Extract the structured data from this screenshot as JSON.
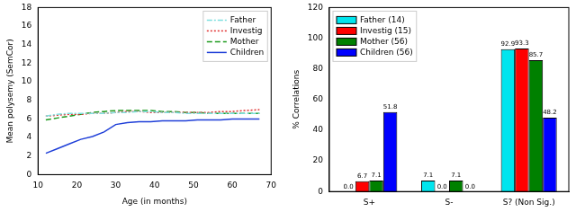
{
  "chart_data": [
    {
      "type": "line",
      "y_label": "Mean polysemy (SemCor)",
      "x_label": "Age (in months)",
      "xlim": [
        10,
        70
      ],
      "xticks": [
        10,
        20,
        30,
        40,
        50,
        60,
        70
      ],
      "ylim": [
        0,
        18
      ],
      "yticks": [
        0,
        2,
        4,
        6,
        8,
        10,
        12,
        14,
        16,
        18
      ],
      "grid": false,
      "legend": "upper right",
      "x": [
        12,
        15,
        18,
        21,
        24,
        27,
        30,
        33,
        36,
        39,
        42,
        45,
        48,
        51,
        54,
        57,
        60,
        63,
        67
      ],
      "series": [
        {
          "name": "Father",
          "color": "#7fdfdf",
          "line_style": "dashdot",
          "marker": "none",
          "values": [
            6.3,
            6.5,
            6.6,
            6.6,
            6.6,
            6.6,
            6.7,
            6.7,
            6.8,
            6.8,
            6.7,
            6.7,
            6.6,
            6.6,
            6.6,
            6.6,
            6.6,
            6.6,
            6.6
          ]
        },
        {
          "name": "Investig",
          "color": "#e03030",
          "line_style": "dotted",
          "marker": "none",
          "values": [
            6.3,
            6.4,
            6.5,
            6.5,
            6.6,
            6.6,
            6.7,
            6.8,
            6.8,
            6.7,
            6.7,
            6.7,
            6.7,
            6.7,
            6.7,
            6.8,
            6.8,
            6.9,
            7.0
          ]
        },
        {
          "name": "Mother",
          "color": "#1e9a1e",
          "line_style": "dashed",
          "marker": "none",
          "values": [
            5.9,
            6.1,
            6.3,
            6.5,
            6.7,
            6.8,
            6.9,
            6.9,
            6.9,
            6.9,
            6.8,
            6.8,
            6.7,
            6.7,
            6.6,
            6.6,
            6.6,
            6.6,
            6.6
          ]
        },
        {
          "name": "Children",
          "color": "#1f3fd8",
          "line_style": "solid",
          "marker": "none",
          "values": [
            2.3,
            2.8,
            3.3,
            3.8,
            4.1,
            4.6,
            5.4,
            5.6,
            5.7,
            5.7,
            5.8,
            5.8,
            5.8,
            5.9,
            5.9,
            5.9,
            6.0,
            6.0,
            6.0
          ]
        }
      ]
    },
    {
      "type": "bar",
      "y_label": "% Correlations",
      "categories": [
        "S+",
        "S-",
        "S? (Non Sig.)"
      ],
      "ylim": [
        0,
        120
      ],
      "yticks": [
        0,
        20,
        40,
        60,
        80,
        100,
        120
      ],
      "grid": false,
      "legend": "upper left",
      "data_labels": true,
      "series": [
        {
          "name": "Father (14)",
          "color": "#00e5ee",
          "values": [
            0.0,
            7.1,
            92.9
          ],
          "value_labels": [
            "0.0",
            "7.1",
            "92.9"
          ]
        },
        {
          "name": "Investig (15)",
          "color": "#ff0000",
          "values": [
            6.7,
            0.0,
            93.3
          ],
          "value_labels": [
            "6.7",
            "0.0",
            "93.3"
          ]
        },
        {
          "name": "Mother (56)",
          "color": "#008000",
          "values": [
            7.1,
            7.1,
            85.7
          ],
          "value_labels": [
            "7.1",
            "7.1",
            "85.7"
          ]
        },
        {
          "name": "Children (56)",
          "color": "#0000ff",
          "values": [
            51.8,
            0.0,
            48.2
          ],
          "value_labels": [
            "51.8",
            "0.0",
            "48.2"
          ]
        }
      ]
    }
  ]
}
